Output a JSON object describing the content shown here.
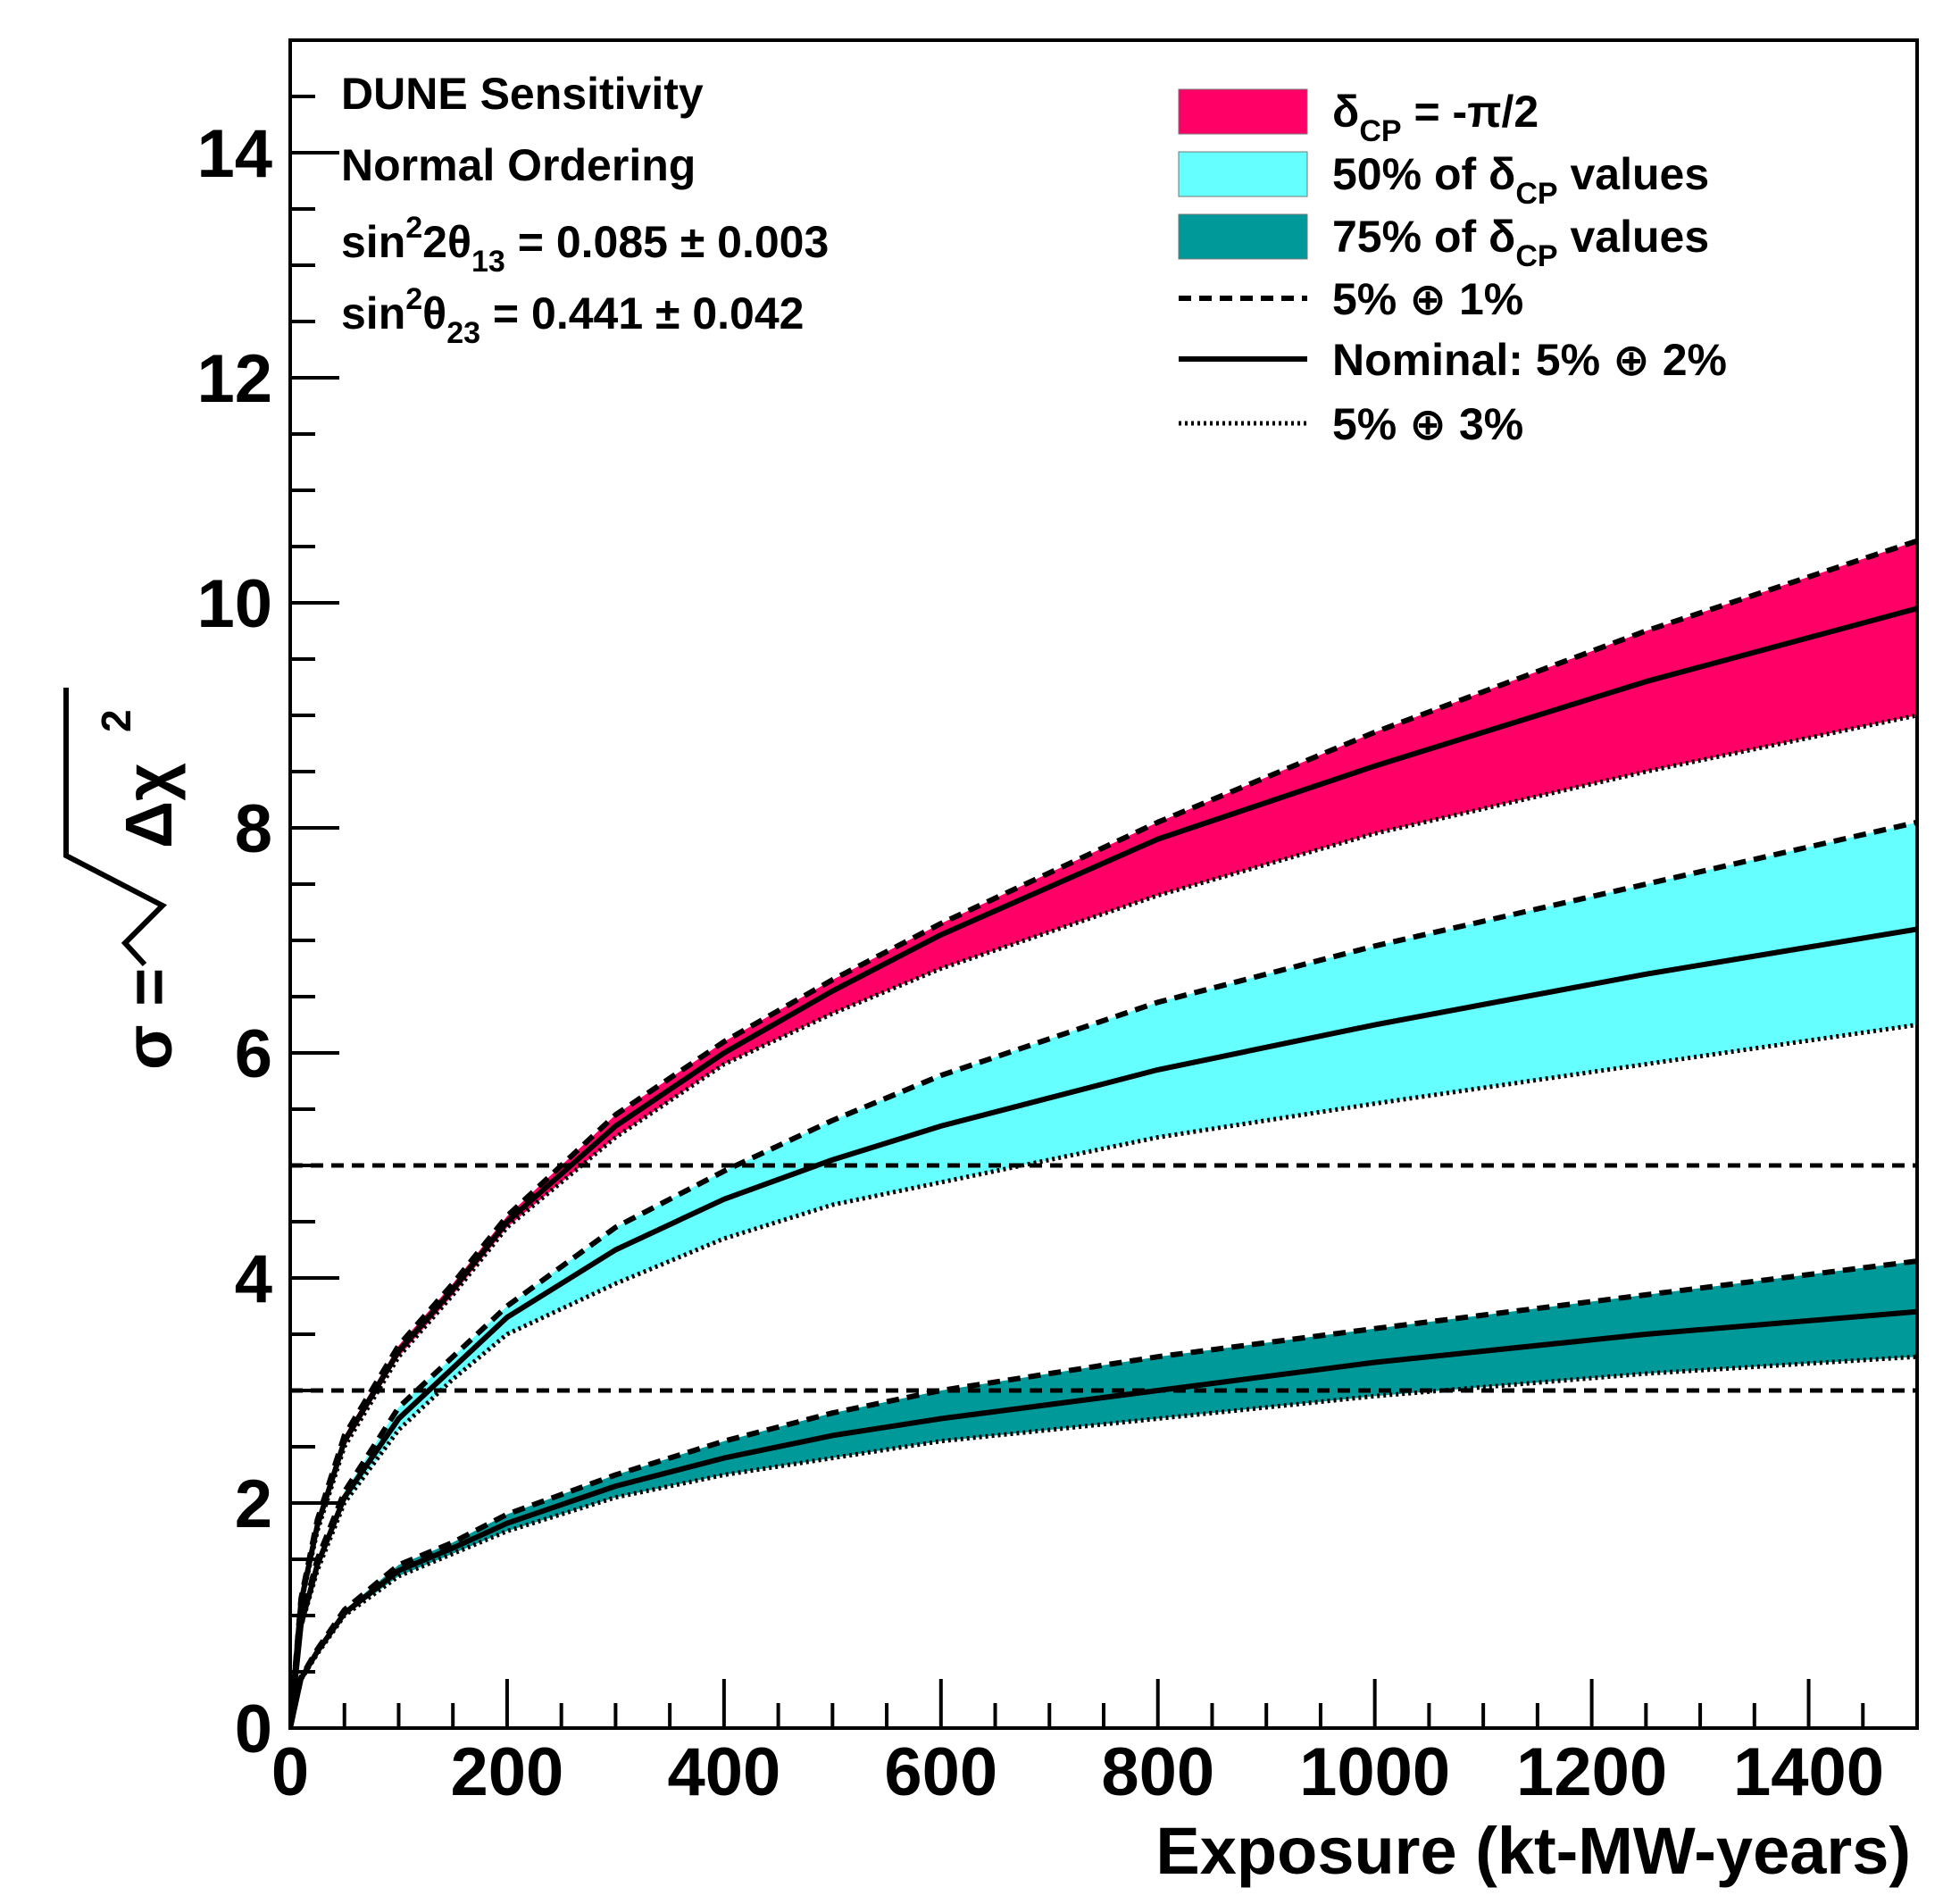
{
  "chart_data": {
    "type": "area",
    "title": "",
    "xlabel": "Exposure (kt-MW-years)",
    "ylabel_prefix": "σ = ",
    "ylabel_radicand": "Δχ",
    "ylabel_power": "2",
    "xlim": [
      0,
      1500
    ],
    "ylim": [
      0,
      15
    ],
    "x_ticks": [
      0,
      200,
      400,
      600,
      800,
      1000,
      1200,
      1400
    ],
    "y_ticks": [
      0,
      2,
      4,
      6,
      8,
      10,
      12,
      14
    ],
    "x_minor_step": 50,
    "y_minor_step": 0.5,
    "grid": false,
    "annotations": [
      {
        "main": "DUNE Sensitivity"
      },
      {
        "main": "Normal Ordering"
      },
      {
        "pre": "sin",
        "sup": "2",
        "mid": "2θ",
        "sub": "13",
        "post": " = 0.085 ± 0.003"
      },
      {
        "pre": "sin",
        "sup": "2",
        "mid": "θ",
        "sub": "23",
        "post": " = 0.441 ± 0.042"
      }
    ],
    "reference_lines": [
      {
        "y": 5,
        "style": "dashed"
      },
      {
        "y": 3,
        "style": "dashed"
      }
    ],
    "legend": {
      "position": "top-right",
      "entries": [
        {
          "kind": "fill",
          "color": "#ff0066",
          "pre": "δ",
          "sub": "CP",
          "post": " = -π/2"
        },
        {
          "kind": "fill",
          "color": "#66ffff",
          "pre": "50% of  δ",
          "sub": "CP",
          "post": " values"
        },
        {
          "kind": "fill",
          "color": "#009999",
          "pre": "75% of  δ",
          "sub": "CP",
          "post": " values"
        },
        {
          "kind": "line",
          "style": "dashed",
          "pre": "5%  ⊕ 1%"
        },
        {
          "kind": "line",
          "style": "solid",
          "pre": "Nominal: 5%  ⊕ 2%"
        },
        {
          "kind": "line",
          "style": "dotted",
          "pre": "5%  ⊕ 3%"
        }
      ]
    },
    "x": [
      0,
      10,
      25,
      50,
      100,
      150,
      200,
      300,
      400,
      500,
      600,
      800,
      1000,
      1250,
      1500
    ],
    "bands": [
      {
        "name": "δCP = -π/2",
        "color": "#ff0066",
        "upper_5_1": [
          0,
          1.15,
          1.85,
          2.6,
          3.4,
          3.95,
          4.55,
          5.45,
          6.1,
          6.65,
          7.15,
          8.05,
          8.85,
          9.75,
          10.55
        ],
        "nominal_5_2": [
          0,
          1.12,
          1.8,
          2.55,
          3.35,
          3.9,
          4.5,
          5.35,
          6.0,
          6.55,
          7.05,
          7.9,
          8.55,
          9.3,
          9.95
        ],
        "lower_5_3": [
          0,
          1.1,
          1.75,
          2.5,
          3.3,
          3.85,
          4.45,
          5.25,
          5.9,
          6.35,
          6.75,
          7.4,
          7.95,
          8.5,
          9.0
        ]
      },
      {
        "name": "50% of δCP values",
        "color": "#66ffff",
        "upper_5_1": [
          0,
          0.95,
          1.5,
          2.1,
          2.85,
          3.3,
          3.75,
          4.45,
          4.95,
          5.4,
          5.8,
          6.45,
          6.95,
          7.5,
          8.05
        ],
        "nominal_5_2": [
          0,
          0.92,
          1.45,
          2.05,
          2.75,
          3.2,
          3.65,
          4.25,
          4.7,
          5.05,
          5.35,
          5.85,
          6.25,
          6.7,
          7.1
        ],
        "lower_5_3": [
          0,
          0.9,
          1.4,
          2.0,
          2.65,
          3.1,
          3.5,
          3.95,
          4.35,
          4.65,
          4.85,
          5.25,
          5.55,
          5.9,
          6.25
        ]
      },
      {
        "name": "75% of δCP values",
        "color": "#009999",
        "upper_5_1": [
          0,
          0.45,
          0.7,
          1.05,
          1.45,
          1.65,
          1.9,
          2.25,
          2.55,
          2.8,
          3.0,
          3.3,
          3.55,
          3.85,
          4.15
        ],
        "nominal_5_2": [
          0,
          0.44,
          0.68,
          1.02,
          1.4,
          1.6,
          1.82,
          2.15,
          2.4,
          2.6,
          2.75,
          3.0,
          3.25,
          3.5,
          3.7
        ],
        "lower_5_3": [
          0,
          0.43,
          0.66,
          1.0,
          1.35,
          1.55,
          1.75,
          2.05,
          2.25,
          2.4,
          2.55,
          2.75,
          2.95,
          3.15,
          3.3
        ]
      }
    ]
  }
}
